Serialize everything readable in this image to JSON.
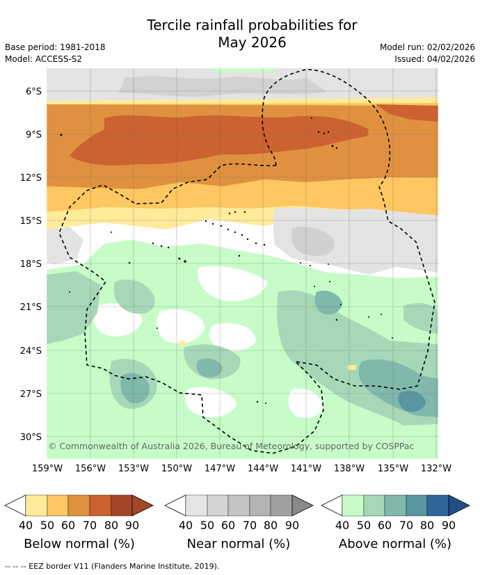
{
  "title_line1": "Tercile rainfall probabilities for",
  "title_line2": "May 2026",
  "base_period": "Base period: 1981-2018",
  "model": "Model: ACCESS-S2",
  "model_run": "Model run: 02/02/2026",
  "issued": "Issued: 04/02/2026",
  "copyright": "© Commonwealth of Australia 2026, Bureau of Meteorology, supported by COSPPac",
  "latitude_labels": [
    "6°S",
    "9°S",
    "12°S",
    "15°S",
    "18°S",
    "21°S",
    "24°S",
    "27°S",
    "30°S"
  ],
  "longitude_labels": [
    "159°W",
    "156°W",
    "153°W",
    "150°W",
    "147°W",
    "144°W",
    "141°W",
    "138°W",
    "135°W",
    "132°W"
  ],
  "colorbars": [
    {
      "title": "Below normal (%)",
      "ticks": [
        "40",
        "50",
        "60",
        "70",
        "80",
        "90"
      ],
      "colors": [
        "#ffeb9a",
        "#fec761",
        "#e0913f",
        "#cc6230",
        "#a3472a",
        "#a3472a"
      ]
    },
    {
      "title": "Near normal (%)",
      "ticks": [
        "40",
        "50",
        "60",
        "70",
        "80",
        "90"
      ],
      "colors": [
        "#e5e5e5",
        "#d4d4d4",
        "#c4c4c4",
        "#b3b3b3",
        "#a0a0a0",
        "#8a8a8a"
      ]
    },
    {
      "title": "Above normal (%)",
      "ticks": [
        "40",
        "50",
        "60",
        "70",
        "80",
        "90"
      ],
      "colors": [
        "#c7fcc9",
        "#a6d8b8",
        "#80b8ac",
        "#5a95a2",
        "#2d6698",
        "#1f4f86"
      ]
    }
  ],
  "footer": "-- -- -- EEZ border V11 (Flanders Marine Institute, 2019)."
}
